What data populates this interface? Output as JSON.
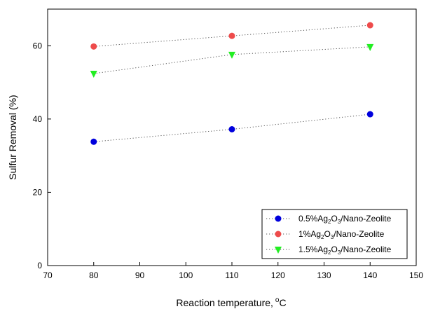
{
  "chart_data": {
    "type": "scatter",
    "title": "",
    "xlabel": "Reaction temperature,",
    "xlabel_unit_sup": "o",
    "xlabel_unit": "C",
    "ylabel": "Sulfur Removal (%)",
    "xlim": [
      70,
      150
    ],
    "ylim": [
      0,
      70
    ],
    "xticks": [
      70,
      80,
      90,
      100,
      110,
      120,
      130,
      140,
      150
    ],
    "yticks": [
      0,
      20,
      40,
      60
    ],
    "grid": false,
    "legend_position": "bottom-right",
    "series": [
      {
        "name": "0.5%Ag2O3/Nano-Zeolite",
        "legend_parts": [
          [
            "0.5%Ag",
            ""
          ],
          [
            "2",
            "sub"
          ],
          [
            "O",
            ""
          ],
          [
            "3",
            "sub"
          ],
          [
            "/Nano-Zeolite",
            ""
          ]
        ],
        "marker": "circle",
        "color": "#0000dd",
        "line_color": "#555555",
        "x": [
          80,
          110,
          140
        ],
        "y": [
          33.8,
          37.2,
          41.3
        ]
      },
      {
        "name": "1%Ag2O3/Nano-Zeolite",
        "legend_parts": [
          [
            "1%Ag",
            ""
          ],
          [
            "2",
            "sub"
          ],
          [
            "O",
            ""
          ],
          [
            "3",
            "sub"
          ],
          [
            "/Nano-Zeolite",
            ""
          ]
        ],
        "marker": "circle",
        "color": "#ee4b4b",
        "line_color": "#555555",
        "x": [
          80,
          110,
          140
        ],
        "y": [
          59.8,
          62.7,
          65.6
        ]
      },
      {
        "name": "1.5%Ag2O3/Nano-Zeolite",
        "legend_parts": [
          [
            "1.5%Ag",
            ""
          ],
          [
            "2",
            "sub"
          ],
          [
            "O",
            ""
          ],
          [
            "3",
            "sub"
          ],
          [
            "/Nano-Zeolite",
            ""
          ]
        ],
        "marker": "triangle-down",
        "color": "#22ee22",
        "line_color": "#555555",
        "x": [
          80,
          110,
          140
        ],
        "y": [
          52.4,
          57.6,
          59.7
        ]
      }
    ]
  }
}
